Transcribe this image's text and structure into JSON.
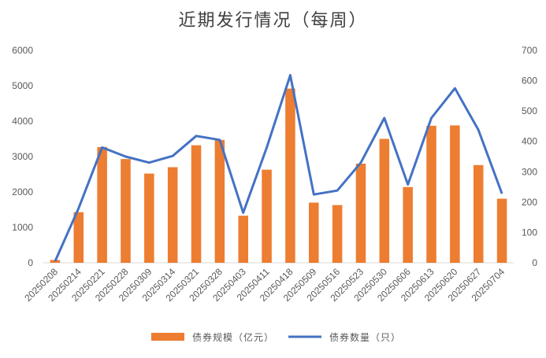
{
  "chart_data": {
    "type": "bar+line",
    "title": "近期发行情况（每周）",
    "categories": [
      "20250208",
      "20250214",
      "20250221",
      "20250228",
      "20250309",
      "20250314",
      "20250321",
      "20250328",
      "20250403",
      "20250411",
      "20250418",
      "20250509",
      "20250516",
      "20250523",
      "20250530",
      "20250606",
      "20250613",
      "20250620",
      "20250627",
      "20250704"
    ],
    "series": [
      {
        "name": "债券规模（亿元）",
        "type": "bar",
        "axis": "left",
        "color": "#ED7D31",
        "values": [
          80,
          1430,
          3270,
          2930,
          2520,
          2700,
          3320,
          3470,
          1330,
          2630,
          4920,
          1700,
          1630,
          2800,
          3500,
          2140,
          3870,
          3880,
          2760,
          1810
        ]
      },
      {
        "name": "债券数量（只）",
        "type": "line",
        "axis": "right",
        "color": "#4472C4",
        "values": [
          5,
          180,
          380,
          350,
          330,
          352,
          418,
          405,
          165,
          380,
          618,
          225,
          238,
          330,
          477,
          258,
          477,
          575,
          438,
          228
        ]
      }
    ],
    "y_left": {
      "min": 0,
      "max": 6000,
      "ticks": [
        "0",
        "1000",
        "2000",
        "3000",
        "4000",
        "5000",
        "6000"
      ]
    },
    "y_right": {
      "min": 0,
      "max": 700,
      "ticks": [
        "0",
        "100",
        "200",
        "300",
        "400",
        "500",
        "600",
        "700"
      ]
    },
    "grid": false,
    "legend_position": "bottom"
  }
}
